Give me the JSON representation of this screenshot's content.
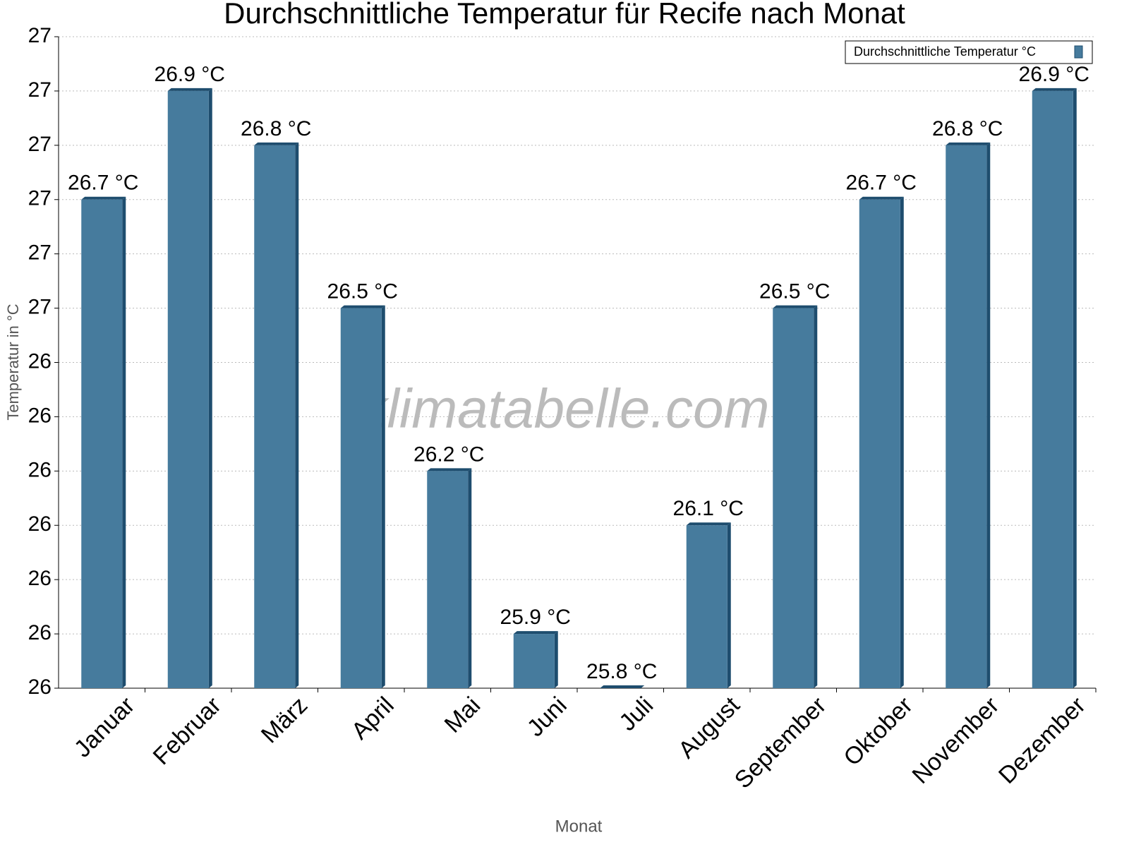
{
  "chart_data": {
    "type": "bar",
    "title": "Durchschnittliche Temperatur für Recife nach Monat",
    "x_label": "Monat",
    "y_label": "Temperatur in °C",
    "watermark": "klimatabelle.com",
    "categories": [
      "Januar",
      "Februar",
      "März",
      "April",
      "Mai",
      "Juni",
      "Juli",
      "August",
      "September",
      "Oktober",
      "November",
      "Dezember"
    ],
    "series": [
      {
        "name": "Durchschnittliche Temperatur °C",
        "color": "#467b9d",
        "values": [
          26.7,
          26.9,
          26.8,
          26.5,
          26.2,
          25.9,
          25.8,
          26.1,
          26.5,
          26.7,
          26.8,
          26.9
        ],
        "value_labels": [
          "26.7 °C",
          "26.9 °C",
          "26.8 °C",
          "26.5 °C",
          "26.2 °C",
          "25.9 °C",
          "25.8 °C",
          "26.1 °C",
          "26.5 °C",
          "26.7 °C",
          "26.8 °C",
          "26.9 °C"
        ]
      }
    ],
    "ylim": [
      25.8,
      27.0
    ],
    "yticks": [
      {
        "value": 25.8,
        "label": "26"
      },
      {
        "value": 25.9,
        "label": "26"
      },
      {
        "value": 26.0,
        "label": "26"
      },
      {
        "value": 26.1,
        "label": "26"
      },
      {
        "value": 26.2,
        "label": "26"
      },
      {
        "value": 26.3,
        "label": "26"
      },
      {
        "value": 26.4,
        "label": "26"
      },
      {
        "value": 26.5,
        "label": "27"
      },
      {
        "value": 26.6,
        "label": "27"
      },
      {
        "value": 26.7,
        "label": "27"
      },
      {
        "value": 26.8,
        "label": "27"
      },
      {
        "value": 26.9,
        "label": "27"
      },
      {
        "value": 27.0,
        "label": "27"
      }
    ],
    "grid": true,
    "legend": "top-right"
  }
}
